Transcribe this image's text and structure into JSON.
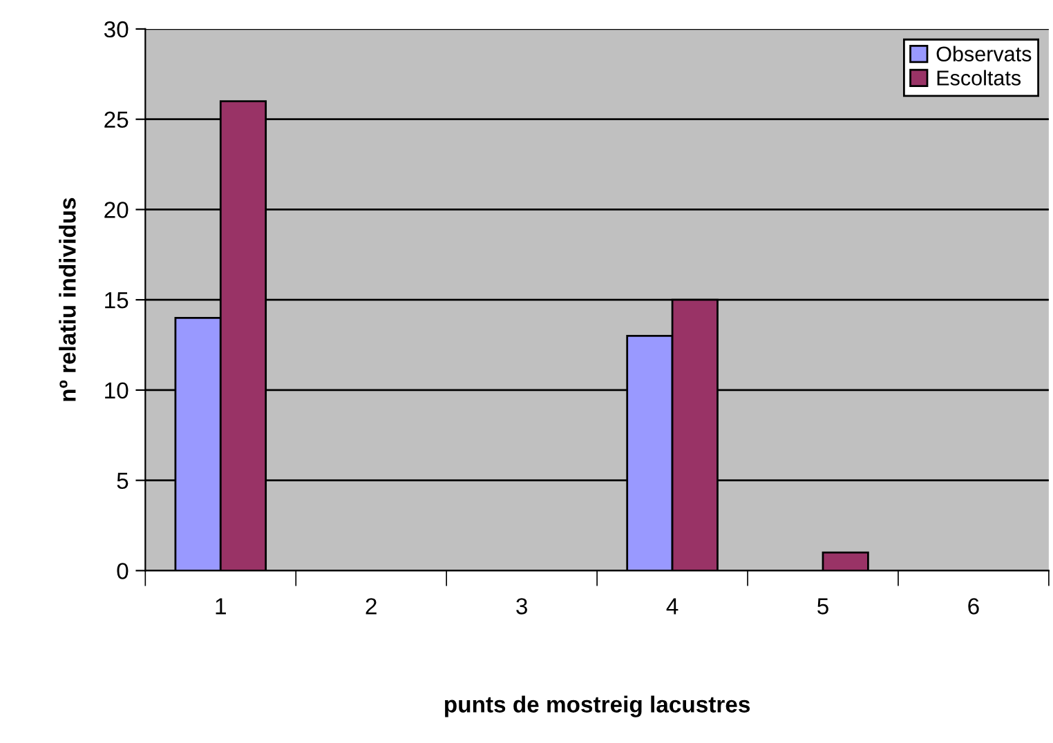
{
  "chart_data": {
    "type": "bar",
    "xlabel": "punts de mostreig lacustres",
    "ylabel": "nº relatiu individus",
    "categories": [
      "1",
      "2",
      "3",
      "4",
      "5",
      "6"
    ],
    "series": [
      {
        "name": "Observats",
        "color": "#9999ff",
        "values": [
          14,
          0,
          0,
          13,
          0,
          0
        ]
      },
      {
        "name": "Escoltats",
        "color": "#993366",
        "values": [
          26,
          0,
          0,
          15,
          1,
          0
        ]
      }
    ],
    "ylim": [
      0,
      30
    ],
    "yticks": [
      0,
      5,
      10,
      15,
      20,
      25,
      30
    ],
    "grid": "y",
    "legend": "top right"
  }
}
